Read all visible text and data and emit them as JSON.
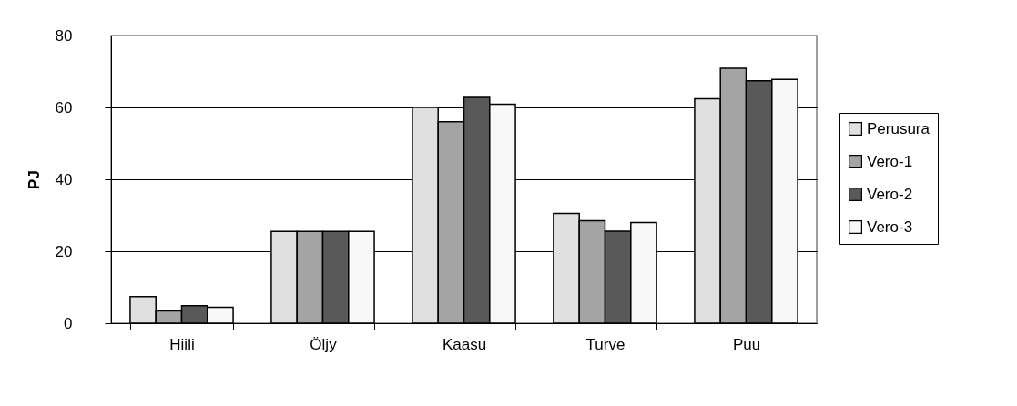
{
  "chart_data": {
    "type": "bar",
    "ylabel": "PJ",
    "categories": [
      "Hiili",
      "Öljy",
      "Kaasu",
      "Turve",
      "Puu"
    ],
    "series": [
      {
        "name": "Perusura",
        "color": "#e0e0e0",
        "values": [
          7.4,
          25.5,
          60.0,
          30.5,
          62.4
        ]
      },
      {
        "name": "Vero-1",
        "color": "#a4a4a4",
        "values": [
          3.4,
          25.5,
          56.0,
          28.5,
          70.9
        ]
      },
      {
        "name": "Vero-2",
        "color": "#595959",
        "values": [
          4.9,
          25.5,
          62.8,
          25.6,
          67.4
        ]
      },
      {
        "name": "Vero-3",
        "color": "#f8f8f8",
        "values": [
          4.4,
          25.5,
          60.9,
          28.0,
          67.8
        ]
      }
    ],
    "ylim": [
      0,
      80
    ],
    "yticks": [
      0,
      20,
      40,
      60,
      80
    ],
    "grid": "y",
    "legend": "right"
  }
}
